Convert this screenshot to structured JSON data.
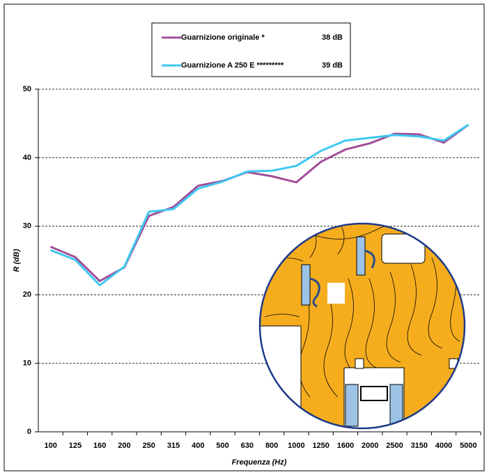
{
  "chart_data": {
    "type": "line",
    "x_label": "Frequenza (Hz)",
    "y_label": "R (dB)",
    "categories": [
      "100",
      "125",
      "160",
      "200",
      "250",
      "315",
      "400",
      "500",
      "630",
      "800",
      "1000",
      "1250",
      "1600",
      "2000",
      "2500",
      "3150",
      "4000",
      "5000"
    ],
    "series": [
      {
        "name": "Guarnizione originale *",
        "legend_value": "38 dB",
        "color": "#a24d98",
        "values": [
          27.0,
          25.5,
          22.0,
          24.0,
          31.5,
          32.8,
          35.9,
          36.6,
          37.9,
          37.3,
          36.4,
          39.4,
          41.2,
          42.1,
          43.5,
          43.4,
          42.2,
          44.8
        ]
      },
      {
        "name": "Guarnizione A 250 E *********",
        "legend_value": "39 dB",
        "color": "#3ec8f0",
        "values": [
          26.5,
          25.1,
          21.4,
          24.1,
          32.1,
          32.5,
          35.5,
          36.5,
          38.0,
          38.1,
          38.8,
          41.0,
          42.5,
          42.9,
          43.3,
          43.1,
          42.5,
          44.8
        ]
      }
    ],
    "ylim": [
      0,
      50
    ],
    "yticks": [
      0,
      10,
      20,
      30,
      40,
      50
    ],
    "grid": true
  }
}
